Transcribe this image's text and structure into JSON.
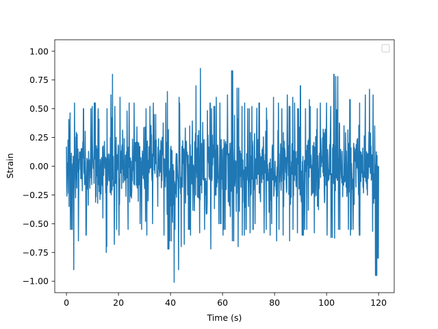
{
  "chart_data": {
    "type": "line",
    "title": "",
    "xlabel": "Time (s)",
    "ylabel": "Strain",
    "xlim": [
      -4.5,
      126.0
    ],
    "ylim": [
      -1.1,
      1.1
    ],
    "x_ticks": [
      0,
      20,
      40,
      60,
      80,
      100,
      120
    ],
    "x_tick_labels": [
      "0",
      "20",
      "40",
      "60",
      "80",
      "100",
      "120"
    ],
    "y_ticks": [
      -1.0,
      -0.75,
      -0.5,
      -0.25,
      0.0,
      0.25,
      0.5,
      0.75,
      1.0
    ],
    "y_tick_labels": [
      "−1.00",
      "−0.75",
      "−0.50",
      "−0.25",
      "0.00",
      "0.25",
      "0.50",
      "0.75",
      "1.00"
    ],
    "grid": false,
    "legend": {
      "placement": "top-right",
      "entries": []
    },
    "colors": {
      "series": "#1f77b4",
      "axes": "#000000",
      "background": "#ffffff"
    },
    "series": [
      {
        "x_start": 0,
        "x_end": 120,
        "points": 1200,
        "envelope": [
          [
            0,
            -0.63,
            0.52
          ],
          [
            1,
            -0.35,
            0.68
          ],
          [
            2,
            -0.55,
            0.7
          ],
          [
            3,
            -0.9,
            0.55
          ],
          [
            4,
            -0.45,
            0.6
          ],
          [
            5,
            -0.65,
            0.42
          ],
          [
            6,
            -0.4,
            0.55
          ],
          [
            7,
            -0.55,
            0.5
          ],
          [
            8,
            -0.6,
            0.55
          ],
          [
            9,
            -0.45,
            0.5
          ],
          [
            10,
            -0.5,
            0.52
          ],
          [
            11,
            -0.6,
            0.55
          ],
          [
            12,
            -0.55,
            0.5
          ],
          [
            13,
            -0.62,
            0.6
          ],
          [
            14,
            -0.45,
            0.48
          ],
          [
            15,
            -0.75,
            0.55
          ],
          [
            16,
            -0.7,
            0.5
          ],
          [
            17,
            -0.55,
            0.62
          ],
          [
            18,
            -0.68,
            0.8
          ],
          [
            19,
            -0.55,
            0.52
          ],
          [
            20,
            -0.6,
            0.55
          ],
          [
            21,
            -0.58,
            0.6
          ],
          [
            22,
            -0.5,
            0.52
          ],
          [
            23,
            -0.45,
            0.48
          ],
          [
            24,
            -0.55,
            0.55
          ],
          [
            25,
            -0.6,
            0.5
          ],
          [
            26,
            -0.58,
            0.55
          ],
          [
            27,
            -0.52,
            0.48
          ],
          [
            28,
            -0.5,
            0.58
          ],
          [
            29,
            -0.55,
            0.52
          ],
          [
            30,
            -0.48,
            0.7
          ],
          [
            31,
            -0.6,
            0.5
          ],
          [
            32,
            -0.55,
            0.52
          ],
          [
            33,
            -0.5,
            0.55
          ],
          [
            34,
            -0.58,
            0.45
          ],
          [
            35,
            -0.52,
            0.55
          ],
          [
            36,
            -0.55,
            0.5
          ],
          [
            37,
            -0.45,
            0.62
          ],
          [
            38,
            -0.6,
            0.55
          ],
          [
            39,
            -0.72,
            0.65
          ],
          [
            40,
            -0.65,
            0.55
          ],
          [
            41,
            -1.01,
            0.52
          ],
          [
            42,
            -0.55,
            0.5
          ],
          [
            43,
            -0.9,
            0.6
          ],
          [
            44,
            -0.7,
            0.55
          ],
          [
            45,
            -0.68,
            0.5
          ],
          [
            46,
            -0.6,
            0.52
          ],
          [
            47,
            -0.55,
            0.5
          ],
          [
            48,
            -0.6,
            0.62
          ],
          [
            49,
            -0.75,
            0.55
          ],
          [
            50,
            -0.65,
            0.7
          ],
          [
            51,
            -0.58,
            0.6
          ],
          [
            52,
            -0.6,
            0.85
          ],
          [
            53,
            -0.55,
            0.6
          ],
          [
            54,
            -0.8,
            1.0
          ],
          [
            55,
            -0.55,
            0.55
          ],
          [
            56,
            -0.72,
            0.5
          ],
          [
            57,
            -0.8,
            0.52
          ],
          [
            58,
            -0.55,
            0.6
          ],
          [
            59,
            -0.5,
            0.55
          ],
          [
            60,
            -0.6,
            0.5
          ],
          [
            61,
            -0.55,
            0.55
          ],
          [
            62,
            -0.58,
            0.62
          ],
          [
            63,
            -0.8,
            0.6
          ],
          [
            64,
            -0.65,
            0.83
          ],
          [
            65,
            -0.55,
            0.6
          ],
          [
            66,
            -0.7,
            0.68
          ],
          [
            67,
            -0.62,
            0.55
          ],
          [
            68,
            -0.6,
            0.52
          ],
          [
            69,
            -0.55,
            0.55
          ],
          [
            70,
            -0.6,
            0.5
          ],
          [
            71,
            -0.58,
            0.52
          ],
          [
            72,
            -0.55,
            0.5
          ],
          [
            73,
            -0.5,
            0.62
          ],
          [
            74,
            -0.6,
            0.55
          ],
          [
            75,
            -0.52,
            0.6
          ],
          [
            76,
            -0.58,
            0.55
          ],
          [
            77,
            -0.55,
            0.8
          ],
          [
            78,
            -0.6,
            0.52
          ],
          [
            79,
            -0.5,
            0.55
          ],
          [
            80,
            -0.55,
            0.6
          ],
          [
            81,
            -0.65,
            0.78
          ],
          [
            82,
            -0.55,
            0.55
          ],
          [
            83,
            -0.6,
            0.5
          ],
          [
            84,
            -0.52,
            0.55
          ],
          [
            85,
            -0.55,
            0.62
          ],
          [
            86,
            -0.65,
            0.52
          ],
          [
            87,
            -0.55,
            0.6
          ],
          [
            88,
            -0.6,
            0.55
          ],
          [
            89,
            -0.58,
            0.5
          ],
          [
            90,
            -0.55,
            0.7
          ],
          [
            91,
            -0.6,
            0.55
          ],
          [
            92,
            -0.55,
            0.5
          ],
          [
            93,
            -0.62,
            0.58
          ],
          [
            94,
            -0.55,
            0.52
          ],
          [
            95,
            -0.58,
            0.55
          ],
          [
            96,
            -0.6,
            0.5
          ],
          [
            97,
            -0.55,
            0.52
          ],
          [
            98,
            -0.52,
            0.55
          ],
          [
            99,
            -0.65,
            0.62
          ],
          [
            100,
            -0.6,
            0.55
          ],
          [
            101,
            -0.55,
            0.6
          ],
          [
            102,
            -0.62,
            0.52
          ],
          [
            103,
            -0.8,
            0.8
          ],
          [
            104,
            -0.58,
            0.78
          ],
          [
            105,
            -0.55,
            0.6
          ],
          [
            106,
            -0.6,
            0.55
          ],
          [
            107,
            -0.58,
            0.65
          ],
          [
            108,
            -0.55,
            0.7
          ],
          [
            109,
            -0.6,
            0.58
          ],
          [
            110,
            -0.55,
            0.55
          ],
          [
            111,
            -0.62,
            0.55
          ],
          [
            112,
            -0.55,
            0.6
          ],
          [
            113,
            -0.6,
            0.55
          ],
          [
            114,
            -0.58,
            0.58
          ],
          [
            115,
            -0.55,
            0.62
          ],
          [
            116,
            -0.6,
            0.7
          ],
          [
            117,
            -0.85,
            0.67
          ],
          [
            118,
            -0.8,
            0.62
          ],
          [
            119,
            -0.95,
            0.35
          ],
          [
            120,
            -0.8,
            0.0
          ]
        ]
      }
    ]
  }
}
